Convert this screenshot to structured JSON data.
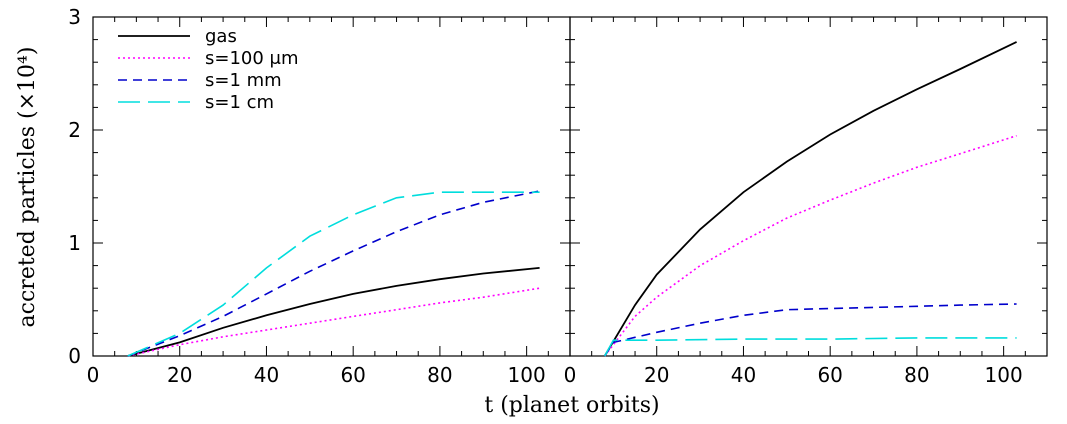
{
  "figure": {
    "ylabel": "accreted particles (×10⁴)",
    "xlabel": "t (planet orbits)"
  },
  "chart_data": [
    {
      "type": "line",
      "panel": "left",
      "xlim": [
        0,
        110
      ],
      "ylim": [
        0,
        3
      ],
      "xticks": [
        0,
        20,
        40,
        60,
        80,
        100
      ],
      "yticks": [
        0,
        1,
        2,
        3
      ],
      "legend_position": "top-left",
      "series": [
        {
          "name": "gas",
          "color": "#000000",
          "style": "solid",
          "x": [
            8,
            20,
            30,
            40,
            50,
            60,
            70,
            80,
            90,
            103
          ],
          "y": [
            0,
            0.12,
            0.25,
            0.36,
            0.46,
            0.55,
            0.62,
            0.68,
            0.73,
            0.78
          ]
        },
        {
          "name": "s=100 μm",
          "color": "#ff00ff",
          "style": "dotted",
          "x": [
            8,
            20,
            30,
            40,
            50,
            60,
            70,
            80,
            90,
            103
          ],
          "y": [
            0,
            0.1,
            0.17,
            0.23,
            0.29,
            0.35,
            0.41,
            0.47,
            0.52,
            0.6
          ]
        },
        {
          "name": "s=1 mm",
          "color": "#0000cc",
          "style": "dashed",
          "x": [
            8,
            20,
            30,
            40,
            50,
            60,
            70,
            80,
            90,
            103
          ],
          "y": [
            0,
            0.18,
            0.35,
            0.55,
            0.75,
            0.93,
            1.1,
            1.25,
            1.36,
            1.46
          ]
        },
        {
          "name": "s=1 cm",
          "color": "#00dddd",
          "style": "longdash",
          "x": [
            8,
            20,
            30,
            40,
            50,
            60,
            70,
            80,
            90,
            103
          ],
          "y": [
            0,
            0.2,
            0.45,
            0.78,
            1.06,
            1.25,
            1.4,
            1.45,
            1.45,
            1.45
          ]
        }
      ]
    },
    {
      "type": "line",
      "panel": "right",
      "xlim": [
        0,
        110
      ],
      "ylim": [
        0,
        3
      ],
      "xticks": [
        0,
        20,
        40,
        60,
        80,
        100
      ],
      "yticks": [
        0,
        1,
        2,
        3
      ],
      "series": [
        {
          "name": "gas",
          "color": "#000000",
          "style": "solid",
          "x": [
            8,
            15,
            20,
            30,
            40,
            50,
            60,
            70,
            80,
            90,
            103
          ],
          "y": [
            0,
            0.45,
            0.72,
            1.12,
            1.45,
            1.72,
            1.96,
            2.17,
            2.36,
            2.54,
            2.78
          ]
        },
        {
          "name": "s=100 μm",
          "color": "#ff00ff",
          "style": "dotted",
          "x": [
            8,
            15,
            20,
            30,
            40,
            50,
            60,
            70,
            80,
            90,
            103
          ],
          "y": [
            0,
            0.35,
            0.52,
            0.8,
            1.02,
            1.22,
            1.38,
            1.53,
            1.67,
            1.79,
            1.95
          ]
        },
        {
          "name": "s=1 mm",
          "color": "#0000cc",
          "style": "dashed",
          "x": [
            8,
            10,
            20,
            30,
            40,
            50,
            60,
            70,
            80,
            90,
            103
          ],
          "y": [
            0,
            0.12,
            0.21,
            0.29,
            0.36,
            0.41,
            0.42,
            0.43,
            0.44,
            0.45,
            0.46
          ]
        },
        {
          "name": "s=1 cm",
          "color": "#00dddd",
          "style": "longdash",
          "x": [
            8,
            10,
            20,
            40,
            60,
            80,
            103
          ],
          "y": [
            0,
            0.14,
            0.14,
            0.15,
            0.15,
            0.16,
            0.16
          ]
        }
      ]
    }
  ]
}
